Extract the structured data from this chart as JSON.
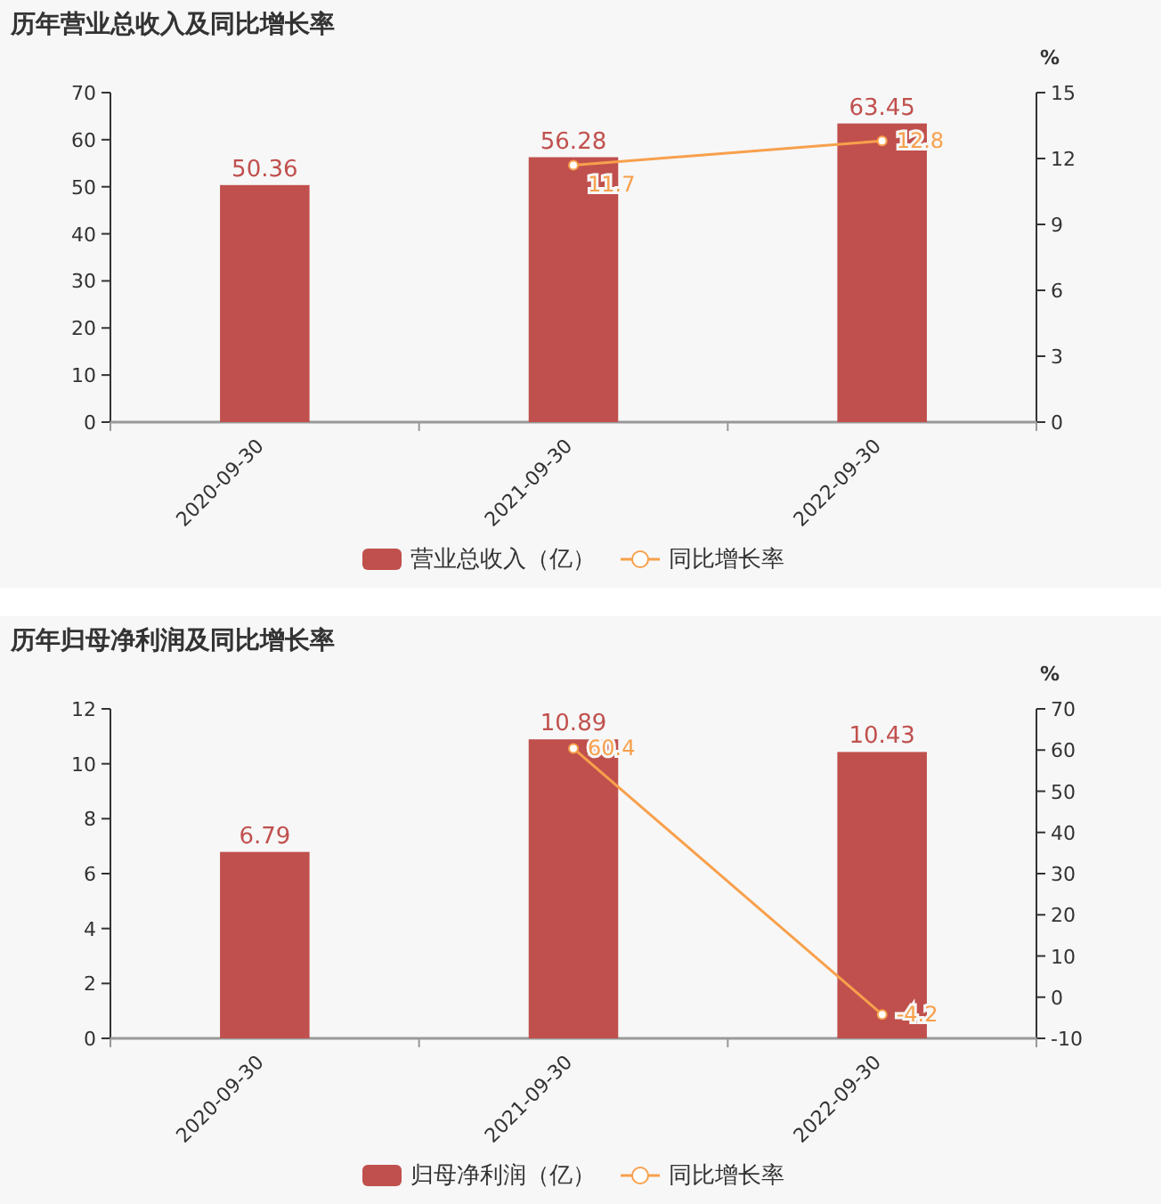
{
  "chart_data": [
    {
      "type": "bar",
      "title": "历年营业总收入及同比增长率",
      "categories": [
        "2020-09-30",
        "2021-09-30",
        "2022-09-30"
      ],
      "series": [
        {
          "name": "营业总收入（亿）",
          "color": "#c0504d",
          "values": [
            50.36,
            56.28,
            63.45
          ]
        },
        {
          "name": "同比增长率",
          "type": "line",
          "axis": "y2",
          "color": "#f8a04c",
          "values": [
            null,
            11.7,
            12.8
          ]
        }
      ],
      "ylim": [
        0,
        70
      ],
      "yticks": [
        0,
        10,
        20,
        30,
        40,
        50,
        60,
        70
      ],
      "y2lim": [
        0,
        15
      ],
      "y2ticks": [
        0,
        3,
        6,
        9,
        12,
        15
      ],
      "y2label": "%",
      "data_labels": true,
      "legend": "bottom",
      "marker": "circle",
      "grid": false
    },
    {
      "type": "bar",
      "title": "历年归母净利润及同比增长率",
      "categories": [
        "2020-09-30",
        "2021-09-30",
        "2022-09-30"
      ],
      "series": [
        {
          "name": "归母净利润（亿）",
          "color": "#c0504d",
          "values": [
            6.79,
            10.89,
            10.43
          ]
        },
        {
          "name": "同比增长率",
          "type": "line",
          "axis": "y2",
          "color": "#f8a04c",
          "values": [
            null,
            60.4,
            -4.2
          ]
        }
      ],
      "ylim": [
        0,
        12
      ],
      "yticks": [
        0,
        2,
        4,
        6,
        8,
        10,
        12
      ],
      "y2lim": [
        -10,
        70
      ],
      "y2ticks": [
        -10,
        0,
        10,
        20,
        30,
        40,
        50,
        60,
        70
      ],
      "y2label": "%",
      "data_labels": true,
      "legend": "bottom",
      "marker": "circle",
      "grid": false
    }
  ]
}
